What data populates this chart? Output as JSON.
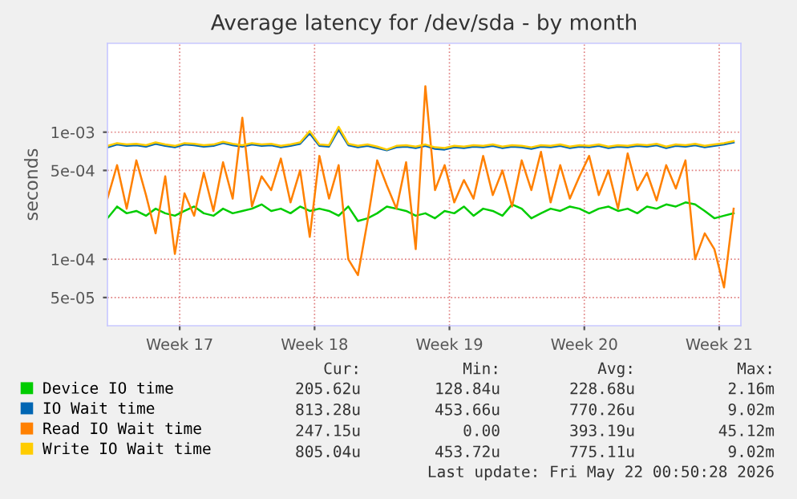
{
  "chart_data": {
    "type": "line",
    "title": "Average latency for /dev/sda - by month",
    "ylabel": "seconds",
    "x": [
      "2026-04-19T12:00",
      "2026-04-20T00:00",
      "2026-04-20T12:00",
      "2026-04-21T00:00",
      "2026-04-21T12:00",
      "2026-04-22T00:00",
      "2026-04-22T12:00",
      "2026-04-23T00:00",
      "2026-04-23T12:00",
      "2026-04-24T00:00",
      "2026-04-24T12:00",
      "2026-04-25T00:00",
      "2026-04-25T12:00",
      "2026-04-26T00:00",
      "2026-04-26T12:00",
      "2026-04-27T00:00",
      "2026-04-27T12:00",
      "2026-04-28T00:00",
      "2026-04-28T12:00",
      "2026-04-29T00:00",
      "2026-04-29T12:00",
      "2026-04-30T00:00",
      "2026-04-30T12:00",
      "2026-05-01T00:00",
      "2026-05-01T12:00",
      "2026-05-02T00:00",
      "2026-05-02T12:00",
      "2026-05-03T00:00",
      "2026-05-03T12:00",
      "2026-05-04T00:00",
      "2026-05-04T12:00",
      "2026-05-05T00:00",
      "2026-05-05T12:00",
      "2026-05-06T00:00",
      "2026-05-06T12:00",
      "2026-05-07T00:00",
      "2026-05-07T12:00",
      "2026-05-08T00:00",
      "2026-05-08T12:00",
      "2026-05-09T00:00",
      "2026-05-09T12:00",
      "2026-05-10T00:00",
      "2026-05-10T12:00",
      "2026-05-11T00:00",
      "2026-05-11T12:00",
      "2026-05-12T00:00",
      "2026-05-12T12:00",
      "2026-05-13T00:00",
      "2026-05-13T12:00",
      "2026-05-14T00:00",
      "2026-05-14T12:00",
      "2026-05-15T00:00",
      "2026-05-15T12:00",
      "2026-05-16T00:00",
      "2026-05-16T12:00",
      "2026-05-17T00:00",
      "2026-05-17T12:00",
      "2026-05-18T00:00",
      "2026-05-18T12:00",
      "2026-05-19T00:00",
      "2026-05-19T12:00",
      "2026-05-20T00:00",
      "2026-05-20T12:00",
      "2026-05-21T00:00",
      "2026-05-21T12:00",
      "2026-05-22T00:00"
    ],
    "series": [
      {
        "name": "Device IO time",
        "color": "#00cc00",
        "values": [
          0.00021,
          0.00026,
          0.00023,
          0.00024,
          0.00022,
          0.00025,
          0.00023,
          0.00022,
          0.00024,
          0.00026,
          0.00023,
          0.00022,
          0.00025,
          0.00023,
          0.00024,
          0.00025,
          0.00027,
          0.00024,
          0.00025,
          0.00023,
          0.00026,
          0.00024,
          0.00025,
          0.00024,
          0.00022,
          0.00026,
          0.0002,
          0.00021,
          0.00023,
          0.00026,
          0.00025,
          0.00024,
          0.00022,
          0.00023,
          0.00021,
          0.00024,
          0.00023,
          0.00026,
          0.00022,
          0.00025,
          0.00024,
          0.00022,
          0.00027,
          0.00025,
          0.00021,
          0.00023,
          0.00025,
          0.00024,
          0.00026,
          0.00025,
          0.00023,
          0.00025,
          0.00026,
          0.00024,
          0.00025,
          0.00023,
          0.00026,
          0.00025,
          0.00027,
          0.00026,
          0.00028,
          0.00027,
          0.00024,
          0.00021,
          0.00022,
          0.00023
        ]
      },
      {
        "name": "IO Wait time",
        "color": "#0066b3",
        "values": [
          0.00076,
          0.0008,
          0.00078,
          0.00079,
          0.00077,
          0.00081,
          0.00078,
          0.00076,
          0.0008,
          0.00079,
          0.00077,
          0.00078,
          0.00082,
          0.00079,
          0.00077,
          0.0008,
          0.00078,
          0.00079,
          0.00076,
          0.00078,
          0.00081,
          0.00098,
          0.00078,
          0.00077,
          0.00105,
          0.00079,
          0.00076,
          0.00078,
          0.00075,
          0.00072,
          0.00076,
          0.00077,
          0.00075,
          0.00078,
          0.00074,
          0.00073,
          0.00076,
          0.00075,
          0.00077,
          0.00076,
          0.00078,
          0.00075,
          0.00077,
          0.00076,
          0.00074,
          0.00077,
          0.00076,
          0.00078,
          0.00075,
          0.00077,
          0.00076,
          0.00078,
          0.00075,
          0.00077,
          0.00076,
          0.00078,
          0.00077,
          0.00079,
          0.00075,
          0.00078,
          0.00077,
          0.00079,
          0.00076,
          0.00078,
          0.0008,
          0.00083
        ]
      },
      {
        "name": "Read IO Wait time",
        "color": "#ff8000",
        "values": [
          0.0003,
          0.00055,
          0.00025,
          0.0006,
          0.00032,
          0.00016,
          0.00045,
          0.00011,
          0.00033,
          0.00022,
          0.00048,
          0.00024,
          0.00058,
          0.0003,
          0.0013,
          0.00026,
          0.00045,
          0.00035,
          0.00062,
          0.00028,
          0.0005,
          0.00015,
          0.00065,
          0.0003,
          0.00055,
          0.0001,
          7.5e-05,
          0.0002,
          0.0006,
          0.00038,
          0.00025,
          0.00058,
          0.00012,
          0.0023,
          0.00035,
          0.00055,
          0.00028,
          0.00042,
          0.0003,
          0.00065,
          0.00032,
          0.0005,
          0.00026,
          0.0006,
          0.00035,
          0.0007,
          0.00028,
          0.00055,
          0.0003,
          0.00045,
          0.00065,
          0.00032,
          0.0005,
          0.00025,
          0.00068,
          0.00035,
          0.00048,
          0.00029,
          0.00055,
          0.00036,
          0.0006,
          0.0001,
          0.00016,
          0.00012,
          6e-05,
          0.00025
        ]
      },
      {
        "name": "Write IO Wait time",
        "color": "#ffcc00",
        "values": [
          0.00078,
          0.00082,
          0.0008,
          0.00081,
          0.00079,
          0.00083,
          0.0008,
          0.00078,
          0.00082,
          0.00081,
          0.00079,
          0.0008,
          0.00084,
          0.00081,
          0.00079,
          0.00082,
          0.0008,
          0.00081,
          0.00078,
          0.0008,
          0.00083,
          0.00102,
          0.0008,
          0.00079,
          0.0011,
          0.00081,
          0.00078,
          0.0008,
          0.00077,
          0.00073,
          0.00078,
          0.00079,
          0.00077,
          0.0008,
          0.00076,
          0.00075,
          0.00078,
          0.00077,
          0.00079,
          0.00078,
          0.0008,
          0.00077,
          0.00079,
          0.00078,
          0.00076,
          0.00079,
          0.00078,
          0.0008,
          0.00077,
          0.00079,
          0.00078,
          0.0008,
          0.00077,
          0.00079,
          0.00078,
          0.0008,
          0.00079,
          0.00081,
          0.00077,
          0.0008,
          0.00079,
          0.00081,
          0.00078,
          0.0008,
          0.00082,
          0.00085
        ]
      }
    ],
    "log": "y",
    "xlim": [
      "2026-04-19T12:00",
      "2026-05-22T09:00"
    ],
    "ylim": [
      3e-05,
      0.005
    ],
    "xticks": [
      {
        "value": "2026-04-23T06:00",
        "label": "Week 17"
      },
      {
        "value": "2026-04-30T06:00",
        "label": "Week 18"
      },
      {
        "value": "2026-05-07T06:00",
        "label": "Week 19"
      },
      {
        "value": "2026-05-14T06:00",
        "label": "Week 20"
      },
      {
        "value": "2026-05-21T06:00",
        "label": "Week 21"
      }
    ],
    "yticks": [
      {
        "value": 5e-05,
        "label": "5e-05"
      },
      {
        "value": 0.0001,
        "label": "1e-04"
      },
      {
        "value": 0.0005,
        "label": "5e-04"
      },
      {
        "value": 0.001,
        "label": "1e-03"
      }
    ],
    "grid": true,
    "legend": "bottom",
    "annotations": [
      "Cur:",
      "Min:",
      "Avg:",
      "Max:",
      "205.62u",
      "128.84u",
      "228.68u",
      "2.16m",
      "813.28u",
      "453.66u",
      "770.26u",
      "9.02m",
      "247.15u",
      "0.00",
      "393.19u",
      "45.12m",
      "805.04u",
      "453.72u",
      "775.11u",
      "9.02m",
      "Last update: Fri May 22 00:50:28 2026"
    ]
  }
}
